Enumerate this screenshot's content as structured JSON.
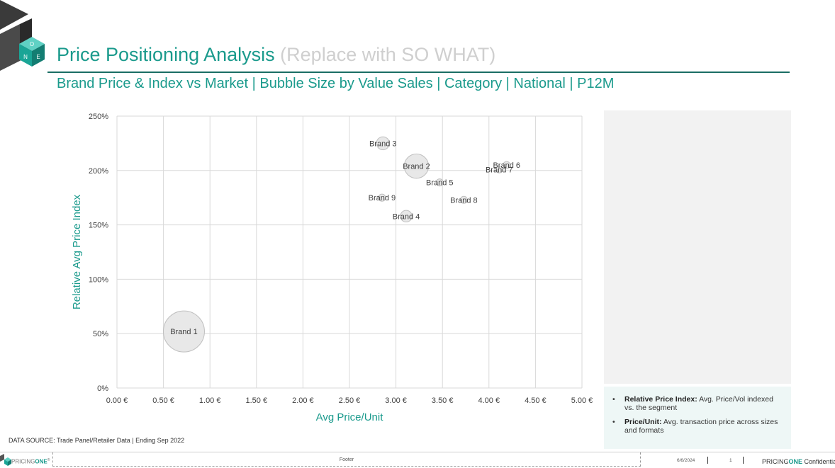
{
  "header": {
    "title_main": "Price Positioning Analysis",
    "title_note": "(Replace with SO WHAT)",
    "subtitle": "Brand Price & Index vs Market | Bubble Size by Value Sales | Category | National | P12M",
    "logo_letters": [
      "O",
      "N",
      "E"
    ]
  },
  "colors": {
    "accent": "#1a9a8c",
    "rule": "#1a6e64",
    "bubble_fill": "#e6e6e6",
    "bubble_stroke": "#bfbfbf",
    "grid": "#d9d9d9"
  },
  "chart_data": {
    "type": "scatter",
    "xlabel": "Avg Price/Unit",
    "ylabel": "Relative Avg Price Index",
    "xlim": [
      0,
      5
    ],
    "ylim": [
      0,
      250
    ],
    "x_ticks": [
      0,
      0.5,
      1,
      1.5,
      2,
      2.5,
      3,
      3.5,
      4,
      4.5,
      5
    ],
    "x_tick_labels": [
      "0.00 €",
      "0.50 €",
      "1.00 €",
      "1.50 €",
      "2.00 €",
      "2.50 €",
      "3.00 €",
      "3.50 €",
      "4.00 €",
      "4.50 €",
      "5.00 €"
    ],
    "y_ticks": [
      0,
      50,
      100,
      150,
      200,
      250
    ],
    "y_tick_labels": [
      "0%",
      "50%",
      "100%",
      "150%",
      "200%",
      "250%"
    ],
    "grid": true,
    "legend": "none",
    "bubble_size_note": "Bubble Size by Value Sales",
    "points": [
      {
        "label": "Brand 1",
        "x": 0.72,
        "y": 52,
        "size": 100
      },
      {
        "label": "Brand 2",
        "x": 3.22,
        "y": 204,
        "size": 35
      },
      {
        "label": "Brand 3",
        "x": 2.86,
        "y": 225,
        "size": 10
      },
      {
        "label": "Brand 4",
        "x": 3.11,
        "y": 158,
        "size": 8
      },
      {
        "label": "Brand 5",
        "x": 3.47,
        "y": 189,
        "size": 3
      },
      {
        "label": "Brand 6",
        "x": 4.19,
        "y": 205,
        "size": 3
      },
      {
        "label": "Brand 7",
        "x": 4.11,
        "y": 201,
        "size": 3
      },
      {
        "label": "Brand 8",
        "x": 3.73,
        "y": 173,
        "size": 3
      },
      {
        "label": "Brand 9",
        "x": 2.85,
        "y": 175,
        "size": 3
      }
    ]
  },
  "notes": [
    {
      "term": "Relative Price Index:",
      "text": "Avg. Price/Vol indexed vs. the segment"
    },
    {
      "term": "Price/Unit:",
      "text": "Avg. transaction price across sizes and formats"
    }
  ],
  "source": "DATA SOURCE: Trade Panel/Retailer Data | Ending Sep 2022",
  "footer": {
    "logo_prefix": "PRICING",
    "logo_one": "ONE",
    "logo_tm": "®",
    "text": "Footer",
    "date": "6/6/2024",
    "page": "1",
    "conf_prefix": "PRICING",
    "conf_one": "ONE",
    "conf_suffix": " Confidential"
  }
}
